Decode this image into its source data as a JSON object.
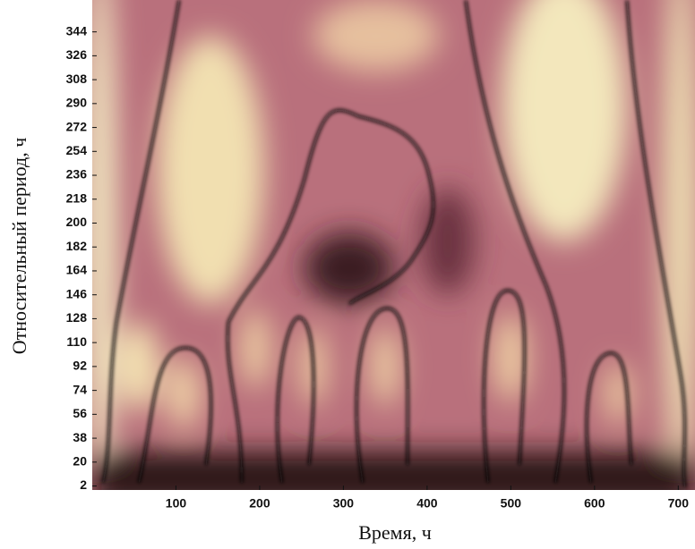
{
  "chart_data": {
    "type": "heatmap",
    "xlabel": "Время, ч",
    "ylabel": "Относительный период, ч",
    "xlim": [
      0,
      720
    ],
    "ylim": [
      -1,
      368
    ],
    "xticks": [
      100,
      200,
      300,
      400,
      500,
      600,
      700
    ],
    "yticks": [
      2,
      20,
      38,
      56,
      74,
      92,
      110,
      128,
      146,
      164,
      182,
      200,
      218,
      236,
      254,
      272,
      290,
      308,
      326,
      344
    ]
  }
}
